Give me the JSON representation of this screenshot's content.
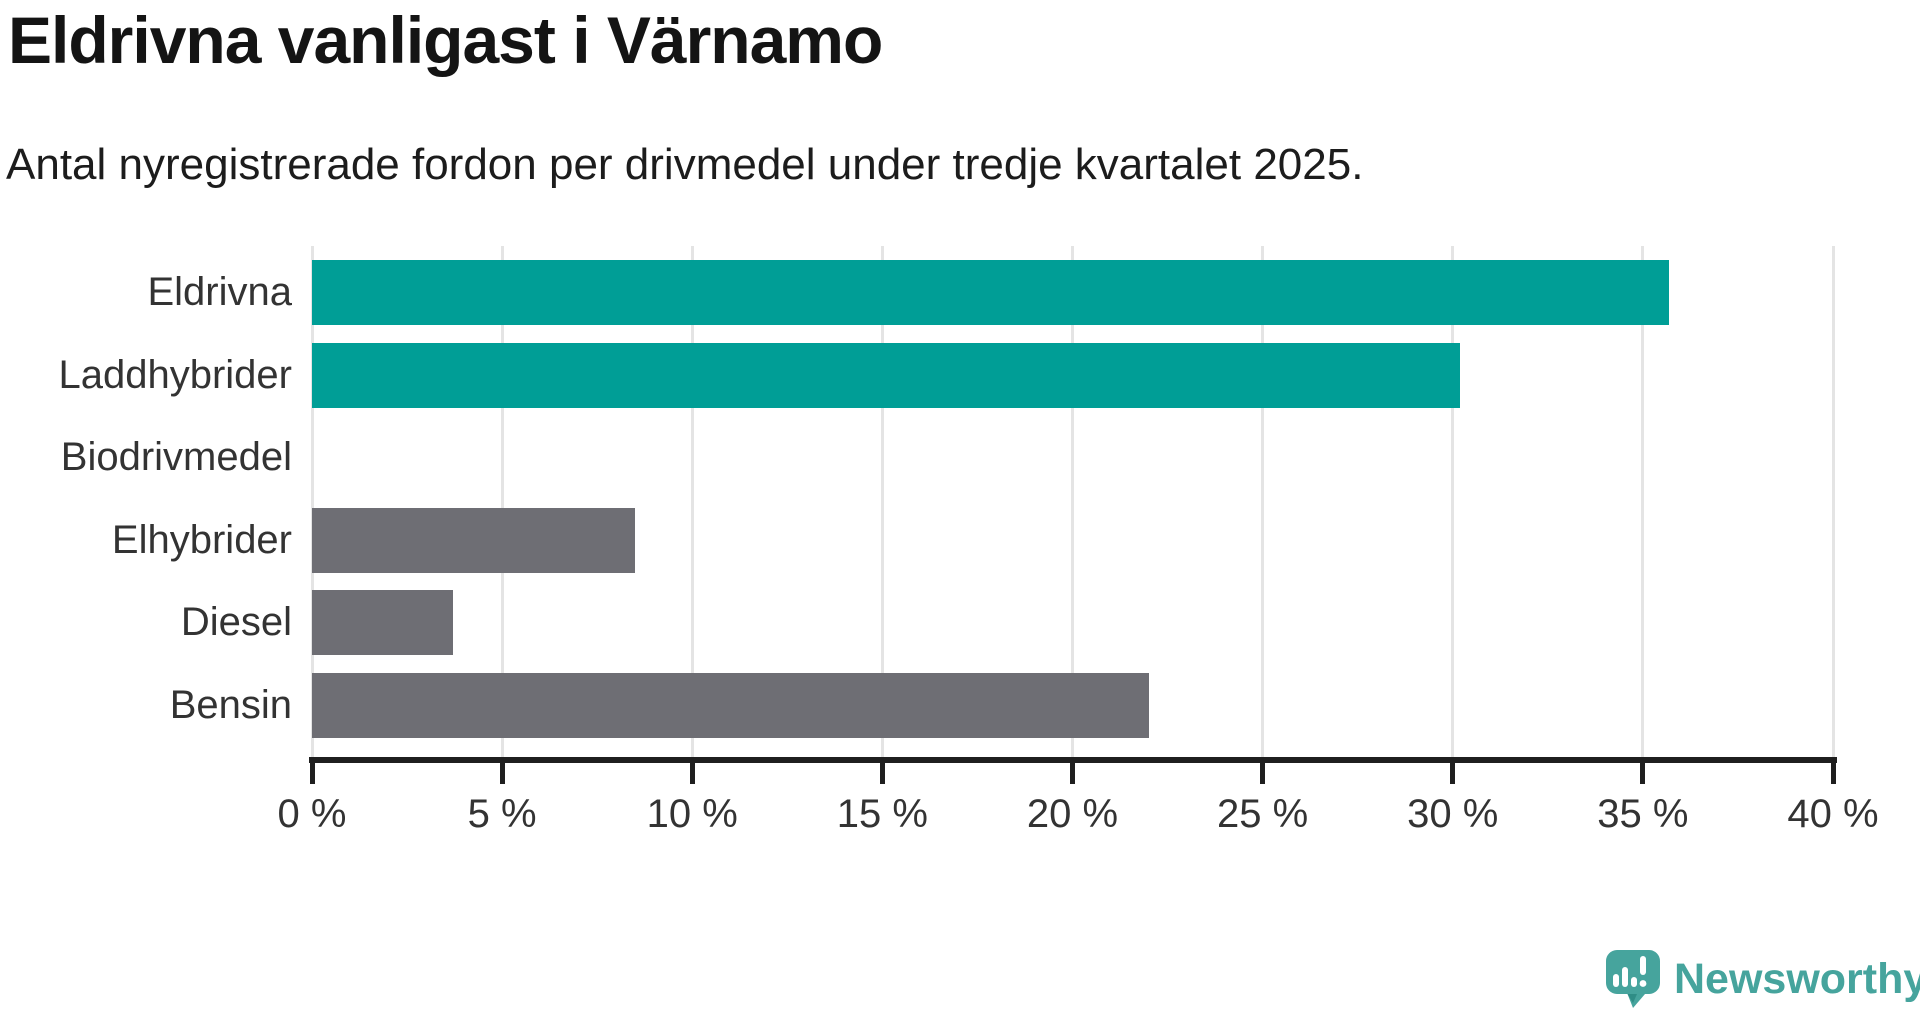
{
  "header": {
    "title": "Eldrivna vanligast i Värnamo",
    "subtitle": "Antal nyregistrerade fordon per drivmedel under tredje kvartalet 2025."
  },
  "chart_data": {
    "type": "bar",
    "orientation": "horizontal",
    "title": "Eldrivna vanligast i Värnamo",
    "subtitle": "Antal nyregistrerade fordon per drivmedel under tredje kvartalet 2025.",
    "categories": [
      "Eldrivna",
      "Laddhybrider",
      "Biodrivmedel",
      "Elhybrider",
      "Diesel",
      "Bensin"
    ],
    "values": [
      35.7,
      30.2,
      0,
      8.5,
      3.7,
      22
    ],
    "unit": "%",
    "bar_colors": [
      "#009e96",
      "#009e96",
      "#6e6e74",
      "#6e6e74",
      "#6e6e74",
      "#6e6e74"
    ],
    "xlabel": "",
    "ylabel": "",
    "xlim": [
      0,
      40
    ],
    "x_ticks": [
      0,
      5,
      10,
      15,
      20,
      25,
      30,
      35,
      40
    ],
    "x_tick_labels": [
      "0 %",
      "5 %",
      "10 %",
      "15 %",
      "20 %",
      "25 %",
      "30 %",
      "35 %",
      "40 %"
    ],
    "grid": true,
    "legend": false
  },
  "colors": {
    "accent_teal": "#009e96",
    "neutral_gray": "#6e6e74",
    "gridline": "#e4e4e4",
    "axis": "#1f1f1f",
    "tick_text": "#333333",
    "brand_teal": "#46a49d",
    "brand_teal_dark": "#2f8d86"
  },
  "footer": {
    "brand": "Newsworthy"
  }
}
